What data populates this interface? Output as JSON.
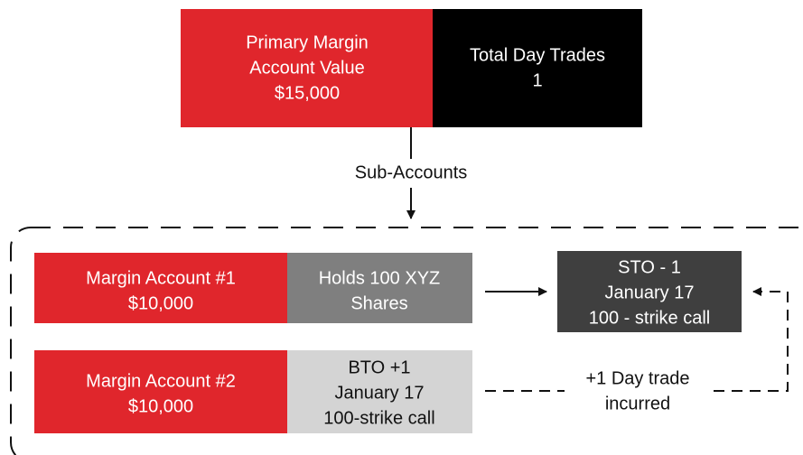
{
  "primary": {
    "lines": [
      "Primary Margin",
      "Account Value",
      "$15,000"
    ]
  },
  "day_trades": {
    "lines": [
      "Total Day Trades",
      "1"
    ]
  },
  "connector_label": "Sub-Accounts",
  "account_1": {
    "lines": [
      "Margin Account #1",
      "$10,000"
    ]
  },
  "holding_1": {
    "lines": [
      "Holds 100 XYZ",
      "Shares"
    ]
  },
  "sto": {
    "lines": [
      "STO - 1",
      "January 17",
      "100 - strike call"
    ]
  },
  "account_2": {
    "lines": [
      "Margin Account #2",
      "$10,000"
    ]
  },
  "holding_2": {
    "lines": [
      "BTO +1",
      "January 17",
      "100-strike call"
    ]
  },
  "day_trade_note": {
    "lines": [
      "+1 Day trade",
      "incurred"
    ]
  }
}
